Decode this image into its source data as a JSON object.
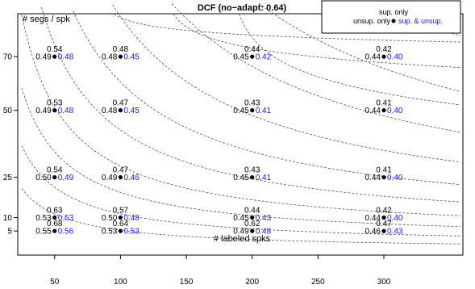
{
  "chart_data": {
    "type": "scatter",
    "title": "DCF (no−adapt: 0.64)",
    "xlabel": "# labeled spks",
    "ylabel": "# segs / spk",
    "x_ticks": [
      "50",
      "100",
      "150",
      "200",
      "250",
      "300"
    ],
    "y_ticks": [
      "5",
      "10",
      "25",
      "50",
      "70"
    ],
    "xlim": [
      22,
      360
    ],
    "ylim": [
      -4,
      86
    ],
    "legend": {
      "placement": "top-right",
      "entries": [
        "sup. only",
        "unsup. only",
        "sup. & unsup."
      ]
    },
    "colors": {
      "sup_unsup": "#1a1ae6",
      "text": "#000000",
      "contour": "#555555"
    },
    "points": [
      {
        "x": 50,
        "y": 70,
        "sup": "0.54",
        "unsup": "0.49",
        "both": "0.48"
      },
      {
        "x": 100,
        "y": 70,
        "sup": "0.48",
        "unsup": "0.48",
        "both": "0.45"
      },
      {
        "x": 200,
        "y": 70,
        "sup": "0.44",
        "unsup": "0.45",
        "both": "0.42"
      },
      {
        "x": 300,
        "y": 70,
        "sup": "0.42",
        "unsup": "0.44",
        "both": "0.40"
      },
      {
        "x": 50,
        "y": 50,
        "sup": "0.53",
        "unsup": "0.49",
        "both": "0.48"
      },
      {
        "x": 100,
        "y": 50,
        "sup": "0.47",
        "unsup": "0.48",
        "both": "0.45"
      },
      {
        "x": 200,
        "y": 50,
        "sup": "0.43",
        "unsup": "0.45",
        "both": "0.41"
      },
      {
        "x": 300,
        "y": 50,
        "sup": "0.41",
        "unsup": "0.44",
        "both": "0.40"
      },
      {
        "x": 50,
        "y": 25,
        "sup": "0.54",
        "unsup": "0.50",
        "both": "0.49"
      },
      {
        "x": 100,
        "y": 25,
        "sup": "0.47",
        "unsup": "0.49",
        "both": "0.46"
      },
      {
        "x": 200,
        "y": 25,
        "sup": "0.43",
        "unsup": "0.45",
        "both": "0.41"
      },
      {
        "x": 300,
        "y": 25,
        "sup": "0.41",
        "unsup": "0.44",
        "both": "0.40"
      },
      {
        "x": 50,
        "y": 10,
        "sup": "0.63",
        "unsup": "0.53",
        "both": "0.53"
      },
      {
        "x": 100,
        "y": 10,
        "sup": "0.57",
        "unsup": "0.50",
        "both": "0.48"
      },
      {
        "x": 200,
        "y": 10,
        "sup": "0.44",
        "unsup": "0.45",
        "both": "0.43"
      },
      {
        "x": 300,
        "y": 10,
        "sup": "0.42",
        "unsup": "0.44",
        "both": "0.40"
      },
      {
        "x": 50,
        "y": 5,
        "sup": "0.68",
        "unsup": "0.55",
        "both": "0.56"
      },
      {
        "x": 100,
        "y": 5,
        "sup": "0.64",
        "unsup": "0.53",
        "both": "0.53"
      },
      {
        "x": 200,
        "y": 5,
        "sup": "0.62",
        "unsup": "0.49",
        "both": "0.48"
      },
      {
        "x": 300,
        "y": 5,
        "sup": "0.47",
        "unsup": "0.46",
        "both": "0.43"
      }
    ]
  }
}
